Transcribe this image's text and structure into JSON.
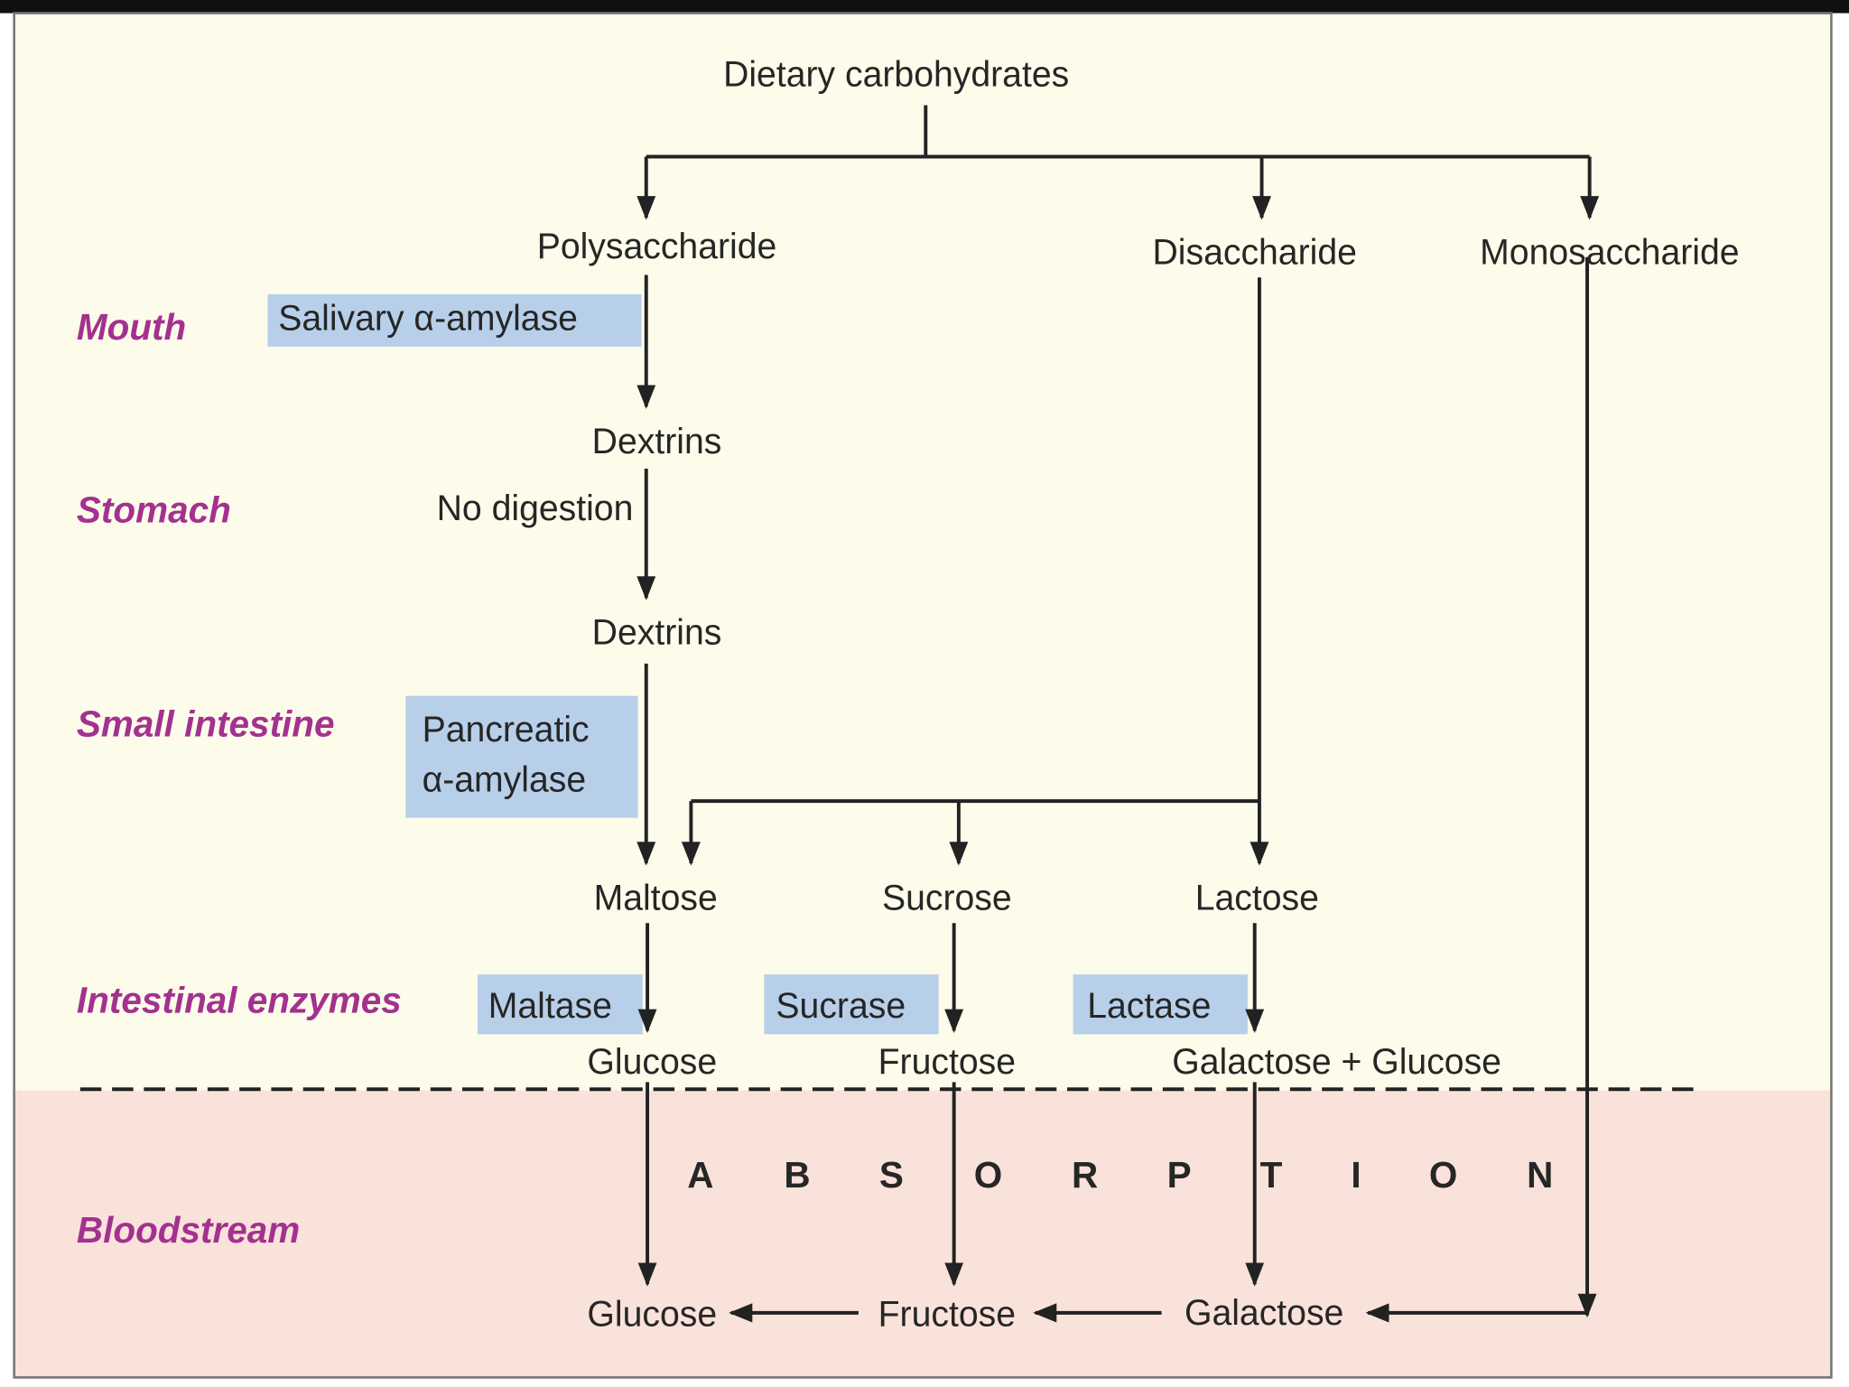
{
  "colors": {
    "background_top": "#fdfbea",
    "background_bottom": "#f9e2da",
    "enzyme_box": "#b8cfea",
    "site_label": "#a3318f",
    "text": "#262626"
  },
  "root": "Dietary carbohydrates",
  "categories": {
    "poly": "Polysaccharide",
    "di": "Disaccharide",
    "mono": "Monosaccharide"
  },
  "sites": {
    "mouth": "Mouth",
    "stomach": "Stomach",
    "small_intestine": "Small intestine",
    "intestinal_enzymes": "Intestinal enzymes",
    "bloodstream": "Bloodstream"
  },
  "enzymes": {
    "salivary": "Salivary α-amylase",
    "pancreatic_1": "Pancreatic",
    "pancreatic_2": "α-amylase",
    "maltase": "Maltase",
    "sucrase": "Sucrase",
    "lactase": "Lactase"
  },
  "nodes": {
    "dextrins_1": "Dextrins",
    "no_digestion": "No digestion",
    "dextrins_2": "Dextrins",
    "maltose": "Maltose",
    "sucrose": "Sucrose",
    "lactose": "Lactose",
    "glucose": "Glucose",
    "fructose": "Fructose",
    "galactose_glucose": "Galactose + Glucose",
    "blood_glucose": "Glucose",
    "blood_fructose": "Fructose",
    "blood_galactose": "Galactose"
  },
  "absorption_letters": [
    "A",
    "B",
    "S",
    "O",
    "R",
    "P",
    "T",
    "I",
    "O",
    "N"
  ]
}
